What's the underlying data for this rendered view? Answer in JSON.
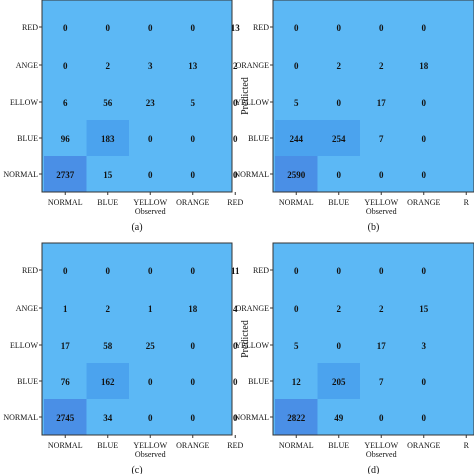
{
  "chart_data": [
    {
      "type": "heatmap",
      "panel_label": "(a)",
      "y_axis_label": "",
      "x_axis_label": "Observed",
      "x_categories": [
        "NORMAL",
        "BLUE",
        "YELLOW",
        "ORANGE",
        "RED"
      ],
      "y_categories": [
        "RED",
        "ORANGE",
        "YELLOW",
        "BLUE",
        "NORMAL"
      ],
      "y_tick_text": [
        "RED",
        "ANGE",
        "ELLOW",
        "BLUE",
        "NORMAL"
      ],
      "x_tick_text": [
        "NORMAL",
        "BLUE",
        "YELLOW",
        "ORANGE",
        "RED"
      ],
      "cells": [
        [
          "0",
          "0",
          "0",
          "0",
          "13"
        ],
        [
          "0",
          "2",
          "3",
          "13",
          "2"
        ],
        [
          "6",
          "56",
          "23",
          "5",
          "0"
        ],
        [
          "96",
          "183",
          "0",
          "0",
          "0"
        ],
        [
          "2737",
          "15",
          "0",
          "0",
          "0"
        ]
      ]
    },
    {
      "type": "heatmap",
      "panel_label": "(b)",
      "y_axis_label": "Predicted",
      "x_axis_label": "Observed",
      "x_categories": [
        "NORMAL",
        "BLUE",
        "YELLOW",
        "ORANGE",
        "RED"
      ],
      "y_categories": [
        "RED",
        "ORANGE",
        "YELLOW",
        "BLUE",
        "NORMAL"
      ],
      "y_tick_text": [
        "RED",
        "ORANGE",
        "YELLOW",
        "BLUE",
        "NORMAL"
      ],
      "x_tick_text": [
        "NORMAL",
        "BLUE",
        "YELLOW",
        "ORANGE",
        "R"
      ],
      "cells": [
        [
          "0",
          "0",
          "0",
          "0",
          ""
        ],
        [
          "0",
          "2",
          "2",
          "18",
          ""
        ],
        [
          "5",
          "0",
          "17",
          "0",
          ""
        ],
        [
          "244",
          "254",
          "7",
          "0",
          ""
        ],
        [
          "2590",
          "0",
          "0",
          "0",
          ""
        ]
      ]
    },
    {
      "type": "heatmap",
      "panel_label": "(c)",
      "y_axis_label": "",
      "x_axis_label": "Observed",
      "x_categories": [
        "NORMAL",
        "BLUE",
        "YELLOW",
        "ORANGE",
        "RED"
      ],
      "y_categories": [
        "RED",
        "ORANGE",
        "YELLOW",
        "BLUE",
        "NORMAL"
      ],
      "y_tick_text": [
        "RED",
        "ANGE",
        "ELLOW",
        "BLUE",
        "NORMAL"
      ],
      "x_tick_text": [
        "NORMAL",
        "BLUE",
        "YELLOW",
        "ORANGE",
        "RED"
      ],
      "cells": [
        [
          "0",
          "0",
          "0",
          "0",
          "11"
        ],
        [
          "1",
          "2",
          "1",
          "18",
          "4"
        ],
        [
          "17",
          "58",
          "25",
          "0",
          "0"
        ],
        [
          "76",
          "162",
          "0",
          "0",
          "0"
        ],
        [
          "2745",
          "34",
          "0",
          "0",
          "0"
        ]
      ]
    },
    {
      "type": "heatmap",
      "panel_label": "(d)",
      "y_axis_label": "Predicted",
      "x_axis_label": "Observed",
      "x_categories": [
        "NORMAL",
        "BLUE",
        "YELLOW",
        "ORANGE",
        "RED"
      ],
      "y_categories": [
        "RED",
        "ORANGE",
        "YELLOW",
        "BLUE",
        "NORMAL"
      ],
      "y_tick_text": [
        "RED",
        "ORANGE",
        "YELLOW",
        "BLUE",
        "NORMAL"
      ],
      "x_tick_text": [
        "NORMAL",
        "BLUE",
        "YELLOW",
        "ORANGE",
        "R"
      ],
      "cells": [
        [
          "0",
          "0",
          "0",
          "0",
          ""
        ],
        [
          "0",
          "2",
          "2",
          "15",
          ""
        ],
        [
          "5",
          "0",
          "17",
          "3",
          ""
        ],
        [
          "12",
          "205",
          "7",
          "0",
          ""
        ],
        [
          "2822",
          "49",
          "0",
          "0",
          ""
        ]
      ]
    }
  ],
  "colors": {
    "base": "#5cb8f5",
    "mid": "#4ba3ee",
    "high": "#4a8fe6",
    "border": "#333333",
    "text": "#111111"
  }
}
